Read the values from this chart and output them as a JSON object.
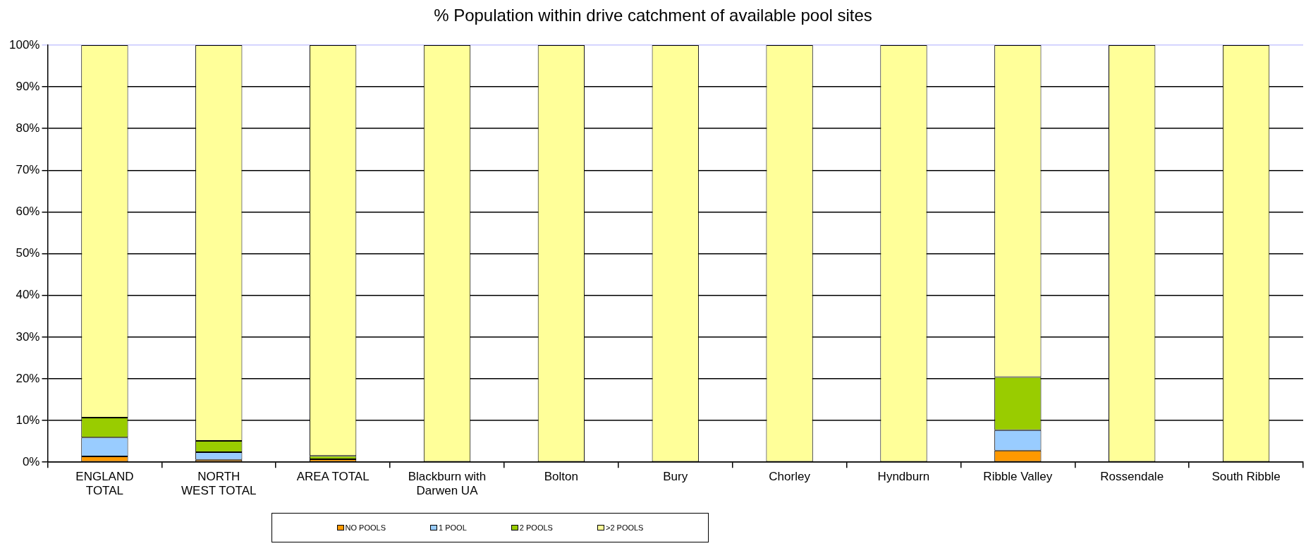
{
  "chart_data": {
    "type": "bar",
    "stacked": true,
    "title": "% Population within drive catchment of available pool sites",
    "categories": [
      "ENGLAND TOTAL",
      "NORTH WEST TOTAL",
      "AREA TOTAL",
      "Blackburn with Darwen UA",
      "Bolton",
      "Bury",
      "Chorley",
      "Hyndburn",
      "Ribble Valley",
      "Rossendale",
      "South Ribble"
    ],
    "series": [
      {
        "name": "NO POOLS",
        "color": "#ff9900",
        "values": [
          1.4,
          0.6,
          0.7,
          0,
          0,
          0,
          0,
          0,
          2.8,
          0,
          0
        ]
      },
      {
        "name": "1 POOL",
        "color": "#99ccff",
        "values": [
          4.5,
          1.8,
          0,
          0,
          0,
          0,
          0,
          0,
          4.9,
          0,
          0
        ]
      },
      {
        "name": "2 POOLS",
        "color": "#99cc00",
        "values": [
          4.8,
          2.7,
          0.8,
          0,
          0,
          0,
          0,
          0,
          12.7,
          0,
          0
        ]
      },
      {
        "name": ">2 POOLS",
        "color": "#ffff99",
        "values": [
          89.3,
          94.9,
          98.5,
          100,
          100,
          100,
          100,
          100,
          79.6,
          100,
          100
        ]
      }
    ],
    "ylim": [
      0,
      100
    ],
    "yticks": [
      {
        "value": 0,
        "label": "0%"
      },
      {
        "value": 10,
        "label": "10%"
      },
      {
        "value": 20,
        "label": "20%"
      },
      {
        "value": 30,
        "label": "30%"
      },
      {
        "value": 40,
        "label": "40%"
      },
      {
        "value": 50,
        "label": "50%"
      },
      {
        "value": 60,
        "label": "60%"
      },
      {
        "value": 70,
        "label": "70%"
      },
      {
        "value": 80,
        "label": "80%"
      },
      {
        "value": 90,
        "label": "90%"
      },
      {
        "value": 100,
        "label": "100%"
      }
    ],
    "grid": "y",
    "legend": "bottom"
  }
}
